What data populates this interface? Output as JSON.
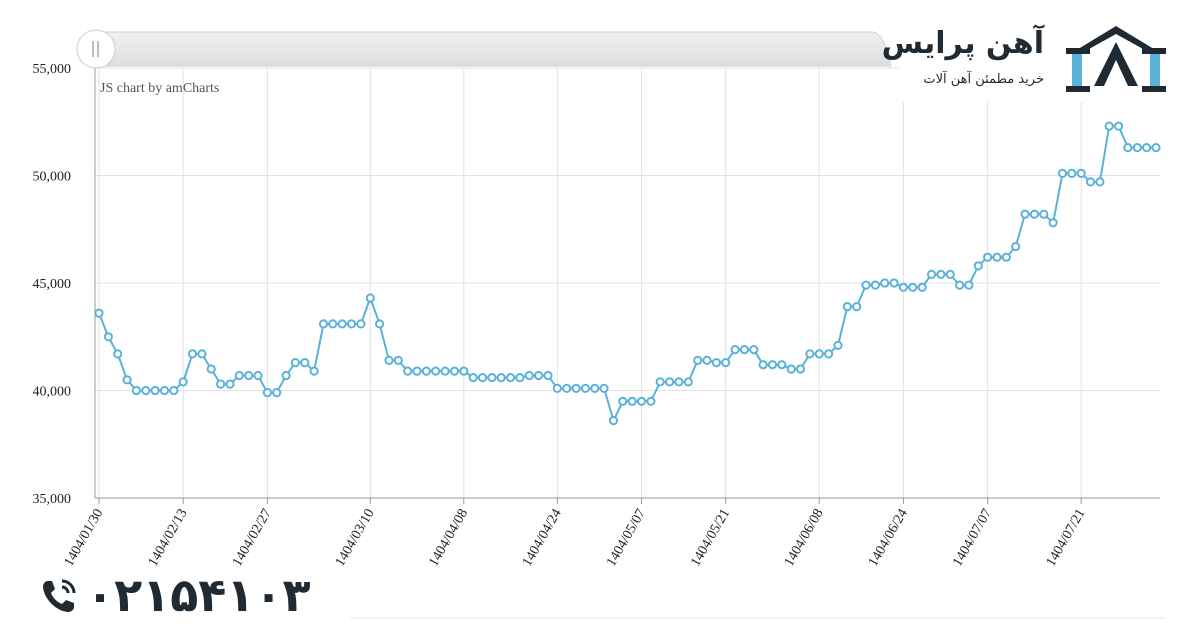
{
  "chart_data": {
    "type": "line",
    "credit": "JS chart by amCharts",
    "ylim": [
      35000,
      55000
    ],
    "y_ticks": [
      "35,000",
      "40,000",
      "45,000",
      "50,000",
      "55,000"
    ],
    "x_tick_labels": [
      "1404/01/30",
      "1404/02/13",
      "1404/02/27",
      "1404/03/10",
      "1404/04/08",
      "1404/04/24",
      "1404/05/07",
      "1404/05/21",
      "1404/06/08",
      "1404/06/24",
      "1404/07/07",
      "1404/07/21"
    ],
    "grid": true,
    "series": [
      {
        "color": "#5bb2d9",
        "values": [
          43600,
          42500,
          41700,
          40500,
          40000,
          40000,
          40000,
          40000,
          40000,
          40400,
          41700,
          41700,
          41000,
          40300,
          40300,
          40700,
          40700,
          40700,
          39900,
          39900,
          40700,
          41300,
          41300,
          40900,
          43100,
          43100,
          43100,
          43100,
          43100,
          44300,
          43100,
          41400,
          41400,
          40900,
          40900,
          40900,
          40900,
          40900,
          40900,
          40900,
          40600,
          40600,
          40600,
          40600,
          40600,
          40600,
          40700,
          40700,
          40700,
          40100,
          40100,
          40100,
          40100,
          40100,
          40100,
          38600,
          39500,
          39500,
          39500,
          39500,
          40400,
          40400,
          40400,
          40400,
          41400,
          41400,
          41300,
          41300,
          41900,
          41900,
          41900,
          41200,
          41200,
          41200,
          41000,
          41000,
          41700,
          41700,
          41700,
          42100,
          43900,
          43900,
          44900,
          44900,
          45000,
          45000,
          44800,
          44800,
          44800,
          45400,
          45400,
          45400,
          44900,
          44900,
          45800,
          46200,
          46200,
          46200,
          46700,
          48200,
          48200,
          48200,
          47800,
          50100,
          50100,
          50100,
          49700,
          49700,
          52300,
          52300,
          51300,
          51300,
          51300,
          51300
        ]
      }
    ]
  },
  "brand": {
    "title": "آهن پرایس",
    "subtitle": "خرید مطمئن آهن آلات",
    "phone": "۰۲۱۵۴۱۰۳",
    "logo_icon": "ahanprice-logo-icon",
    "phone_icon": "phone-icon",
    "accent": "#5bb2d9",
    "dark": "#1f2a33"
  }
}
